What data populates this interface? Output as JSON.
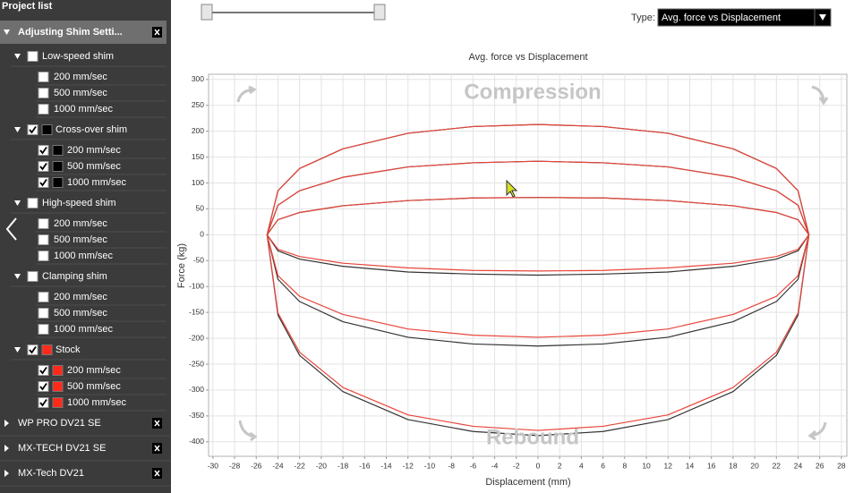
{
  "sidebar": {
    "title": "Project list",
    "projects": [
      {
        "name": "Adjusting Shim Setti...",
        "expanded": true,
        "groups": [
          {
            "name": "Low-speed shim",
            "checked": false,
            "items": [
              {
                "label": "200 mm/sec",
                "checked": false
              },
              {
                "label": "500 mm/sec",
                "checked": false
              },
              {
                "label": "1000 mm/sec",
                "checked": false
              }
            ]
          },
          {
            "name": "Cross-over shim",
            "checked": true,
            "color": "#000000",
            "items": [
              {
                "label": "200 mm/sec",
                "checked": true,
                "color": "#000000"
              },
              {
                "label": "500 mm/sec",
                "checked": true,
                "color": "#000000"
              },
              {
                "label": "1000 mm/sec",
                "checked": true,
                "color": "#000000"
              }
            ]
          },
          {
            "name": "High-speed shim",
            "checked": false,
            "items": [
              {
                "label": "200 mm/sec",
                "checked": false
              },
              {
                "label": "500 mm/sec",
                "checked": false
              },
              {
                "label": "1000 mm/sec",
                "checked": false
              }
            ]
          },
          {
            "name": "Clamping shim",
            "checked": false,
            "items": [
              {
                "label": "200 mm/sec",
                "checked": false
              },
              {
                "label": "500 mm/sec",
                "checked": false
              },
              {
                "label": "1000 mm/sec",
                "checked": false
              }
            ]
          },
          {
            "name": "Stock",
            "checked": true,
            "color": "#ff2a1a",
            "items": [
              {
                "label": "200 mm/sec",
                "checked": true,
                "color": "#ff2a1a"
              },
              {
                "label": "500 mm/sec",
                "checked": true,
                "color": "#ff2a1a"
              },
              {
                "label": "1000 mm/sec",
                "checked": true,
                "color": "#ff2a1a"
              }
            ]
          }
        ]
      },
      {
        "name": "WP PRO DV21 SE",
        "expanded": false
      },
      {
        "name": "MX-TECH DV21 SE",
        "expanded": false
      },
      {
        "name": "MX-Tech DV21",
        "expanded": false
      }
    ]
  },
  "toolbar": {
    "type_label": "Type:",
    "type_value": "Avg. force vs Displacement"
  },
  "chart_data": {
    "type": "line",
    "title": "Avg. force vs Displacement",
    "x_label": "Displacement (mm)",
    "y_label": "Force (kg)",
    "annotations": [
      "Compression",
      "Rebound"
    ],
    "x": [
      -25,
      -24,
      -22,
      -18,
      -12,
      -6,
      0,
      6,
      12,
      18,
      22,
      24,
      25,
      24,
      22,
      18,
      12,
      6,
      0,
      -6,
      -12,
      -18,
      -22,
      -24,
      -25
    ],
    "series": [
      {
        "color": "#333333",
        "values": [
          0,
          29,
          43,
          56,
          66,
          71,
          72,
          71,
          66,
          56,
          43,
          29,
          0,
          -31,
          -47,
          -61,
          -72,
          -76,
          -78,
          -76,
          -72,
          -61,
          -47,
          -31,
          0
        ]
      },
      {
        "color": "#e8453a",
        "values": [
          0,
          29,
          43,
          56,
          66,
          71,
          72,
          71,
          66,
          56,
          43,
          29,
          0,
          -28,
          -42,
          -55,
          -64,
          -69,
          -70,
          -69,
          -64,
          -55,
          -42,
          -28,
          0
        ]
      },
      {
        "color": "#333333",
        "values": [
          0,
          57,
          85,
          111,
          131,
          139,
          142,
          139,
          131,
          111,
          85,
          57,
          0,
          -86,
          -129,
          -168,
          -198,
          -211,
          -215,
          -211,
          -198,
          -168,
          -129,
          -86,
          0
        ]
      },
      {
        "color": "#e8453a",
        "values": [
          0,
          57,
          85,
          111,
          131,
          139,
          142,
          139,
          131,
          111,
          85,
          57,
          0,
          -79,
          -119,
          -154,
          -182,
          -194,
          -198,
          -194,
          -182,
          -154,
          -119,
          -79,
          0
        ]
      },
      {
        "color": "#333333",
        "values": [
          0,
          85,
          128,
          166,
          196,
          209,
          213,
          209,
          196,
          166,
          128,
          85,
          0,
          -155,
          -233,
          -303,
          -357,
          -380,
          -388,
          -380,
          -357,
          -303,
          -233,
          -155,
          0
        ]
      },
      {
        "color": "#e8453a",
        "values": [
          0,
          85,
          128,
          166,
          196,
          209,
          213,
          209,
          196,
          166,
          128,
          85,
          0,
          -151,
          -227,
          -295,
          -348,
          -370,
          -378,
          -370,
          -348,
          -295,
          -227,
          -151,
          0
        ]
      }
    ],
    "xlim": [
      -30.4,
      28.5
    ],
    "ylim": [
      -428,
      310
    ],
    "xticks": [
      -30,
      -28,
      -26,
      -24,
      -22,
      -20,
      -18,
      -16,
      -14,
      -12,
      -10,
      -8,
      -6,
      -4,
      -2,
      0,
      2,
      4,
      6,
      8,
      10,
      12,
      14,
      16,
      18,
      20,
      22,
      24,
      26,
      28
    ],
    "yticks": [
      -400,
      -350,
      -300,
      -250,
      -200,
      -150,
      -100,
      -50,
      0,
      50,
      100,
      150,
      200,
      250,
      300
    ],
    "grid": true
  }
}
